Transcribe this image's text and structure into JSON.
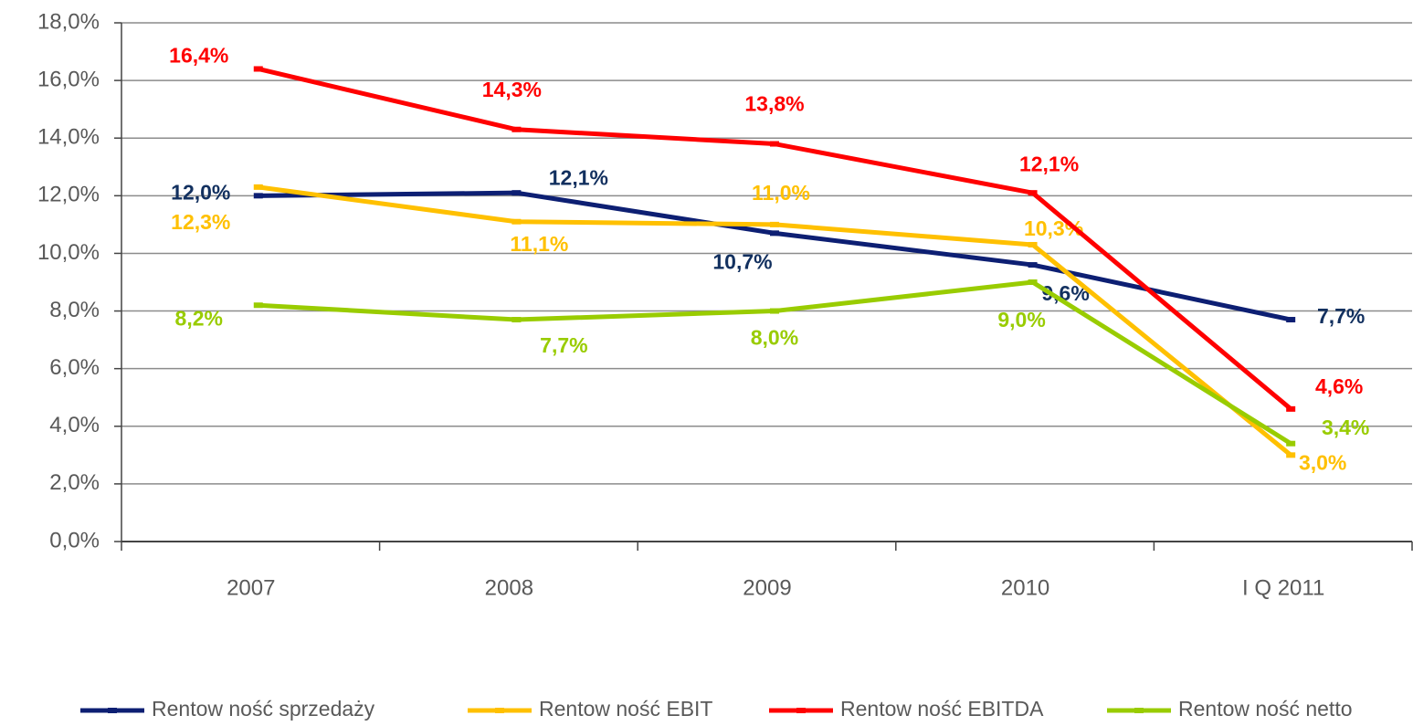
{
  "chart_data": {
    "type": "line",
    "categories": [
      "2007",
      "2008",
      "2009",
      "2010",
      "I Q 2011"
    ],
    "series": [
      {
        "name": "Rentow ność sprzedaży",
        "color": "#0d1f73",
        "label_color": "#12305f",
        "values": [
          12.0,
          12.1,
          10.7,
          9.6,
          7.7
        ],
        "value_labels": [
          "12,0%",
          "12,1%",
          "10,7%",
          "9,6%",
          "7,7%"
        ]
      },
      {
        "name": "Rentow ność EBIT",
        "color": "#ffc000",
        "label_color": "#ffc000",
        "values": [
          12.3,
          11.1,
          11.0,
          10.3,
          3.0
        ],
        "value_labels": [
          "12,3%",
          "11,1%",
          "11,0%",
          "10,3%",
          "3,0%"
        ]
      },
      {
        "name": "Rentow ność EBITDA",
        "color": "#ff0000",
        "label_color": "#ff0000",
        "values": [
          16.4,
          14.3,
          13.8,
          12.1,
          4.6
        ],
        "value_labels": [
          "16,4%",
          "14,3%",
          "13,8%",
          "12,1%",
          "4,6%"
        ]
      },
      {
        "name": "Rentow ność netto",
        "color": "#99cc00",
        "label_color": "#99cc00",
        "values": [
          8.2,
          7.7,
          8.0,
          9.0,
          3.4
        ],
        "value_labels": [
          "8,2%",
          "7,7%",
          "8,0%",
          "9,0%",
          "3,4%"
        ]
      }
    ],
    "ylim": [
      0,
      18
    ],
    "yticks": [
      {
        "value": 0,
        "label": "0,0%"
      },
      {
        "value": 2,
        "label": "2,0%"
      },
      {
        "value": 4,
        "label": "4,0%"
      },
      {
        "value": 6,
        "label": "6,0%"
      },
      {
        "value": 8,
        "label": "8,0%"
      },
      {
        "value": 10,
        "label": "10,0%"
      },
      {
        "value": 12,
        "label": "12,0%"
      },
      {
        "value": 14,
        "label": "14,0%"
      },
      {
        "value": 16,
        "label": "16,0%"
      },
      {
        "value": 18,
        "label": "18,0%"
      }
    ],
    "grid": true,
    "legend": "bottom"
  }
}
